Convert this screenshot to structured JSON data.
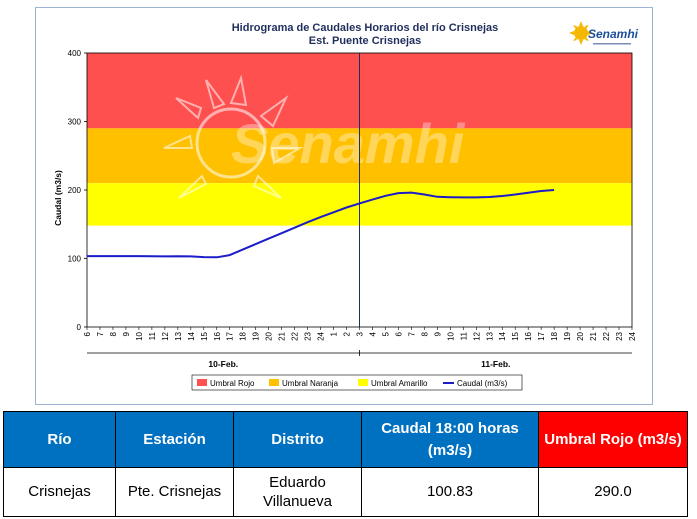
{
  "chart_data": {
    "type": "line",
    "title": "Hidrograma de Caudales Horarios del río Crisnejas",
    "subtitle": "Est. Puente Crisnejas",
    "ylabel": "Caudal  (m3/s)",
    "xlabel": "",
    "ylim": [
      0,
      400
    ],
    "yticks": [
      0,
      100,
      200,
      300,
      400
    ],
    "x_tick_labels": [
      "6",
      "7",
      "8",
      "9",
      "10",
      "11",
      "12",
      "13",
      "14",
      "15",
      "16",
      "17",
      "18",
      "19",
      "20",
      "21",
      "22",
      "23",
      "24",
      "1",
      "2",
      "3",
      "4",
      "5",
      "6",
      "7",
      "8",
      "9",
      "10",
      "11",
      "12",
      "13",
      "14",
      "15",
      "16",
      "17",
      "18",
      "19",
      "20",
      "21",
      "22",
      "23",
      "24"
    ],
    "date_labels": [
      "10-Feb.",
      "11-Feb."
    ],
    "current_time_marker_index": 21,
    "thresholds": [
      {
        "name": "Umbral Rojo",
        "from": 290,
        "to": 400,
        "color": "#ff5050"
      },
      {
        "name": "Umbral Naranja",
        "from": 210,
        "to": 290,
        "color": "#ffc000"
      },
      {
        "name": "Umbral Amarillo",
        "from": 148,
        "to": 210,
        "color": "#ffff00"
      }
    ],
    "series": [
      {
        "name": "Caudal (m3/s)",
        "color": "#1c1cc8",
        "x_index": [
          0,
          1,
          2,
          3,
          4,
          5,
          6,
          7,
          8,
          9,
          10,
          11,
          12,
          13,
          14,
          15,
          16,
          17,
          18,
          19,
          20,
          21,
          22,
          23,
          24,
          25,
          26,
          27,
          28,
          29,
          30,
          31,
          32,
          33,
          34,
          35,
          36
        ],
        "values": [
          103.5,
          103.5,
          103.5,
          103.5,
          103.5,
          103.4,
          103.1,
          103.3,
          103.0,
          102.0,
          101.8,
          105.0,
          113.0,
          121.0,
          129.0,
          137.0,
          145.0,
          153.0,
          160.5,
          167.5,
          174.5,
          180.5,
          186.0,
          191.5,
          195.5,
          196.2,
          193.5,
          190.0,
          189.5,
          189.2,
          189.2,
          189.8,
          191.3,
          193.5,
          196.0,
          198.5,
          200.0
        ]
      }
    ],
    "legend": [
      "Umbral Rojo",
      "Umbral Naranja",
      "Umbral Amarillo",
      "Caudal (m3/s)"
    ],
    "legend_position": "bottom",
    "grid": false
  },
  "logo": {
    "text": "Senamhi",
    "watermark": "Senamhi"
  },
  "colors": {
    "header_blue": "#0070c0",
    "header_red": "#ff0000",
    "frame_border": "#9db3d4"
  },
  "table": {
    "headers": {
      "rio": "Río",
      "estacion": "Estación",
      "distrito": "Distrito",
      "caudal": "Caudal  18:00 horas (m3/s)",
      "umbral": "Umbral Rojo (m3/s)"
    },
    "row": {
      "rio": "Crisnejas",
      "estacion": "Pte. Crisnejas",
      "distrito": "Eduardo Villanueva",
      "caudal": "100.83",
      "umbral": "290.0"
    }
  }
}
